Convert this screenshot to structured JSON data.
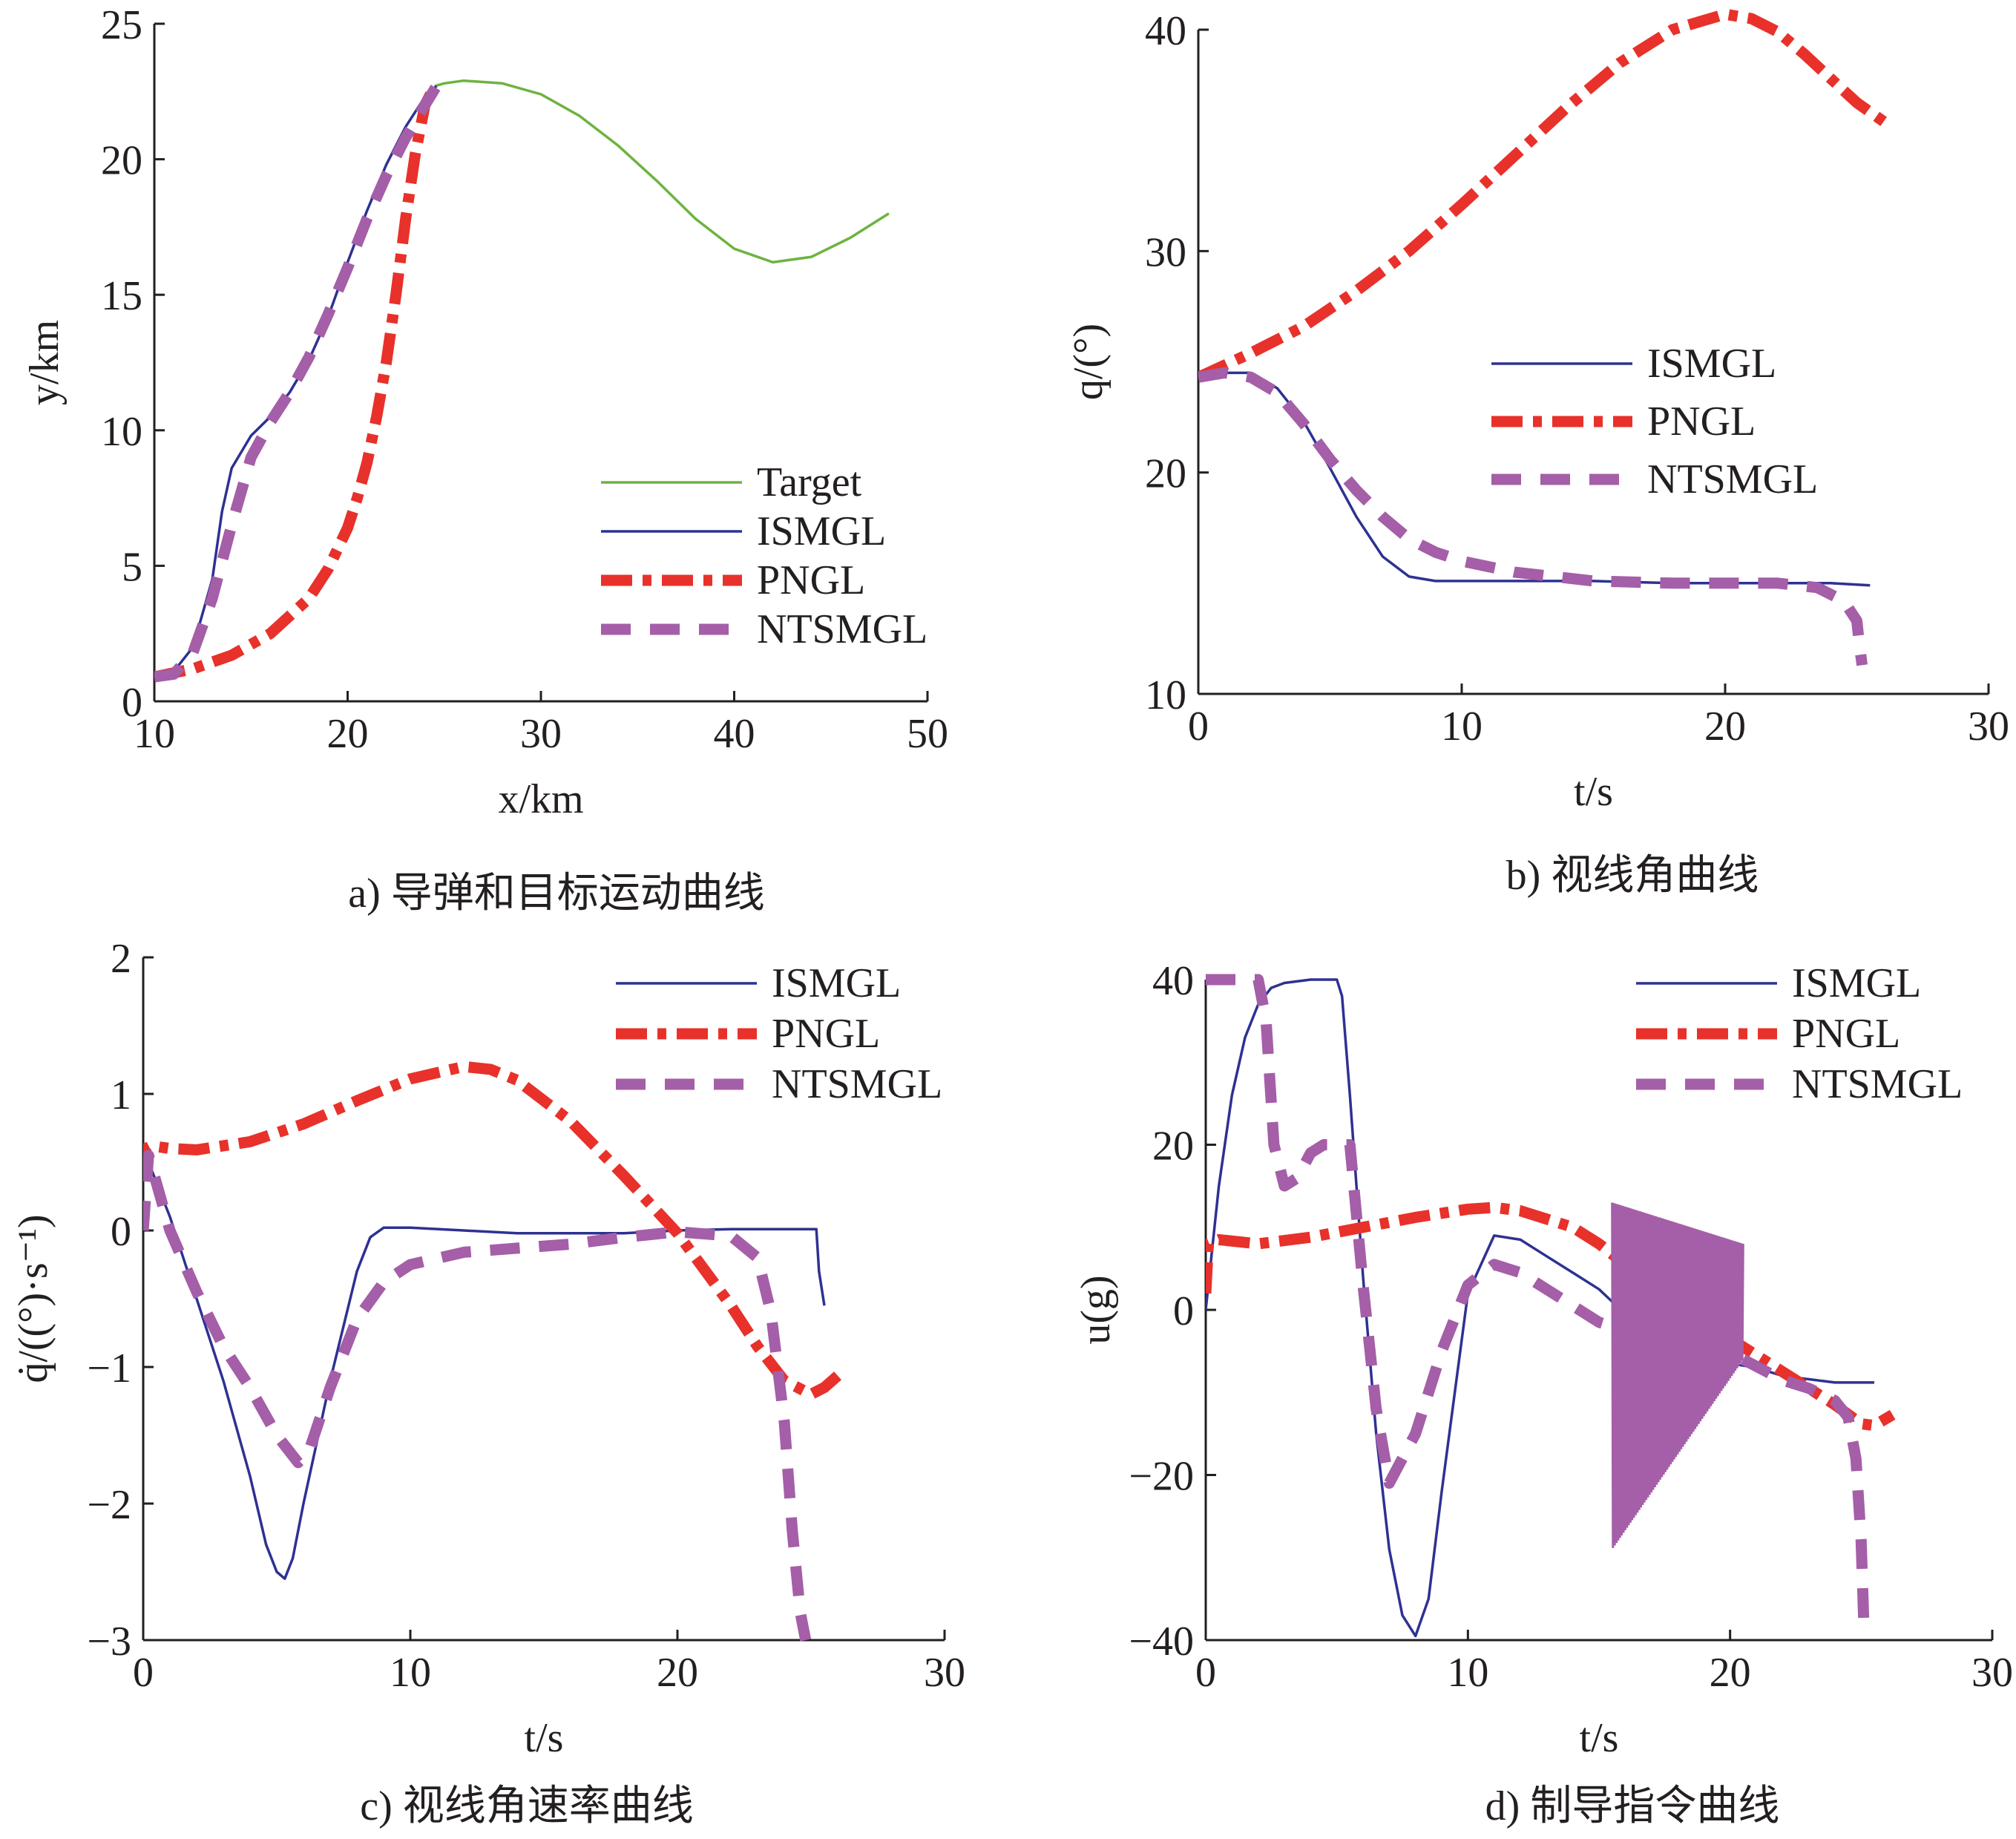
{
  "colors": {
    "target": "#6db33f",
    "ismgl": "#2e3192",
    "pngl": "#e8312a",
    "ntsmgl": "#a55ea8",
    "axis": "#231f20"
  },
  "captions": {
    "a": "a) 导弹和目标运动曲线",
    "b": "b) 视线角曲线",
    "c": "c) 视线角速率曲线",
    "d": "d) 制导指令曲线"
  },
  "chart_data": [
    {
      "id": "a",
      "type": "line",
      "xlabel": "x/km",
      "ylabel": "y/km",
      "xlim": [
        10,
        50
      ],
      "ylim": [
        0,
        25
      ],
      "xticks": [
        10,
        20,
        30,
        40,
        50
      ],
      "yticks": [
        0,
        5,
        10,
        15,
        20,
        25
      ],
      "legend_position": "center-right",
      "series": [
        {
          "name": "Target",
          "style": "solid-thin",
          "color": "target",
          "x": [
            24.5,
            25,
            26,
            28,
            30,
            32,
            34,
            36,
            38,
            40,
            42,
            44,
            46,
            48
          ],
          "y": [
            22.7,
            22.8,
            22.9,
            22.8,
            22.4,
            21.6,
            20.5,
            19.2,
            17.8,
            16.7,
            16.2,
            16.4,
            17.1,
            18.0
          ]
        },
        {
          "name": "ISMGL",
          "style": "solid-thin",
          "color": "ismgl",
          "x": [
            10,
            11,
            12,
            13,
            13.5,
            14,
            15,
            16,
            17,
            18,
            19,
            20,
            21,
            22,
            23,
            24,
            24.6
          ],
          "y": [
            0.9,
            1.1,
            2.0,
            4.5,
            7.0,
            8.6,
            9.8,
            10.5,
            11.4,
            12.6,
            14.2,
            16.2,
            18.1,
            19.8,
            21.2,
            22.3,
            22.7
          ]
        },
        {
          "name": "PNGL",
          "style": "dashdot-thick",
          "color": "pngl",
          "x": [
            10,
            12,
            14,
            16,
            18,
            19,
            20,
            20.5,
            21,
            21.5,
            22,
            22.5,
            23,
            23.5,
            24,
            24.5
          ],
          "y": [
            0.9,
            1.2,
            1.7,
            2.5,
            3.8,
            4.9,
            6.4,
            7.5,
            8.8,
            10.5,
            12.5,
            15.0,
            17.8,
            20.2,
            22.0,
            22.7
          ]
        },
        {
          "name": "NTSMGL",
          "style": "dash-thick",
          "color": "ntsmgl",
          "x": [
            10,
            11,
            12,
            13,
            14,
            15,
            16,
            17,
            18,
            19,
            20,
            21,
            22,
            23,
            24,
            24.6
          ],
          "y": [
            0.9,
            1.0,
            1.8,
            3.8,
            6.5,
            9.0,
            10.3,
            11.4,
            12.7,
            14.3,
            16.0,
            17.8,
            19.4,
            20.8,
            22.0,
            22.7
          ]
        }
      ]
    },
    {
      "id": "b",
      "type": "line",
      "xlabel": "t/s",
      "ylabel": "q/(°)",
      "xlim": [
        0,
        30
      ],
      "ylim": [
        10,
        40
      ],
      "xticks": [
        0,
        10,
        20,
        30
      ],
      "yticks": [
        10,
        20,
        30,
        40
      ],
      "legend_position": "center-right",
      "series": [
        {
          "name": "ISMGL",
          "style": "solid-thin",
          "color": "ismgl",
          "x": [
            0,
            1,
            2,
            3,
            4,
            5,
            6,
            7,
            8,
            9,
            10,
            12,
            15,
            18,
            20,
            22,
            24,
            25.5
          ],
          "y": [
            24.3,
            24.5,
            24.5,
            23.8,
            22.3,
            20.2,
            18.0,
            16.2,
            15.3,
            15.1,
            15.1,
            15.1,
            15.1,
            15.0,
            15.0,
            15.0,
            15.0,
            14.9
          ]
        },
        {
          "name": "PNGL",
          "style": "dashdot-thick",
          "color": "pngl",
          "x": [
            0,
            2,
            4,
            6,
            8,
            10,
            12,
            14,
            16,
            18,
            20,
            21,
            22,
            23,
            24,
            25,
            26.2
          ],
          "y": [
            24.3,
            25.4,
            26.6,
            28.2,
            30.0,
            32.1,
            34.3,
            36.5,
            38.5,
            40.0,
            40.7,
            40.5,
            39.9,
            38.9,
            37.8,
            36.7,
            35.7
          ]
        },
        {
          "name": "NTSMGL",
          "style": "dash-thick",
          "color": "ntsmgl",
          "x": [
            0,
            1,
            2,
            3,
            4,
            5,
            6,
            7,
            8,
            9,
            10,
            12,
            15,
            18,
            20,
            22,
            23.5,
            24.5,
            25,
            25.1,
            25.2
          ],
          "y": [
            24.3,
            24.5,
            24.3,
            23.6,
            22.2,
            20.6,
            19.2,
            18.0,
            17.0,
            16.4,
            16.0,
            15.5,
            15.1,
            15.0,
            15.0,
            15.0,
            14.8,
            14.2,
            13.3,
            12.2,
            11.3
          ]
        }
      ]
    },
    {
      "id": "c",
      "type": "line",
      "xlabel": "t/s",
      "ylabel": "q̇/((°)·s⁻¹)",
      "xlim": [
        0,
        30
      ],
      "ylim": [
        -3,
        2
      ],
      "xticks": [
        0,
        10,
        20,
        30
      ],
      "yticks": [
        -3,
        -2,
        -1,
        0,
        1,
        2
      ],
      "legend_position": "top-right",
      "series": [
        {
          "name": "ISMGL",
          "style": "solid-thin",
          "color": "ismgl",
          "x": [
            0,
            1,
            2,
            3,
            4,
            4.6,
            5,
            5.3,
            5.6,
            6,
            7,
            8,
            8.5,
            9,
            10,
            12,
            14,
            16,
            18,
            20,
            22,
            24,
            25.2,
            25.3,
            25.5
          ],
          "y": [
            0.6,
            0.1,
            -0.5,
            -1.1,
            -1.8,
            -2.3,
            -2.5,
            -2.55,
            -2.4,
            -2.0,
            -1.1,
            -0.3,
            -0.05,
            0.02,
            0.02,
            0.0,
            -0.02,
            -0.02,
            -0.02,
            0.0,
            0.01,
            0.01,
            0.01,
            -0.3,
            -0.55
          ]
        },
        {
          "name": "PNGL",
          "style": "dashdot-thick",
          "color": "pngl",
          "x": [
            0,
            0.1,
            0.3,
            1,
            2,
            4,
            6,
            8,
            10,
            12,
            13,
            14,
            16,
            18,
            20,
            22,
            23,
            24,
            25,
            25.5,
            26.2
          ],
          "y": [
            0.4,
            0.6,
            0.62,
            0.6,
            0.59,
            0.65,
            0.78,
            0.95,
            1.11,
            1.2,
            1.18,
            1.1,
            0.8,
            0.4,
            -0.02,
            -0.55,
            -0.85,
            -1.1,
            -1.2,
            -1.15,
            -1.03
          ]
        },
        {
          "name": "NTSMGL",
          "style": "dash-thick",
          "color": "ntsmgl",
          "x": [
            0,
            0.2,
            1,
            2,
            3,
            4,
            5,
            5.8,
            6.2,
            7,
            8,
            9,
            10,
            12,
            14,
            16,
            18,
            20,
            22,
            23,
            23.5,
            24,
            24.3,
            24.6,
            24.8
          ],
          "y": [
            0.0,
            0.55,
            0.0,
            -0.45,
            -0.85,
            -1.15,
            -1.5,
            -1.7,
            -1.62,
            -1.15,
            -0.65,
            -0.38,
            -0.25,
            -0.16,
            -0.13,
            -0.1,
            -0.05,
            -0.01,
            -0.04,
            -0.2,
            -0.6,
            -1.4,
            -2.2,
            -2.8,
            -3.0
          ]
        }
      ]
    },
    {
      "id": "d",
      "type": "line",
      "xlabel": "t/s",
      "ylabel": "u(g)",
      "xlim": [
        0,
        30
      ],
      "ylim": [
        -40,
        40
      ],
      "xticks": [
        0,
        10,
        20,
        30
      ],
      "yticks": [
        -40,
        -20,
        0,
        20,
        40
      ],
      "legend_position": "top-right",
      "series": [
        {
          "name": "ISMGL",
          "style": "solid-thin",
          "color": "ismgl",
          "x": [
            0,
            0.5,
            1,
            1.5,
            2,
            2.5,
            3,
            4,
            5,
            5.2,
            5.5,
            6,
            6.5,
            7,
            7.5,
            8,
            8.5,
            9,
            10,
            11,
            12,
            13,
            14,
            15,
            15.5,
            16,
            17,
            18,
            19,
            20,
            21,
            22,
            24,
            25.5
          ],
          "y": [
            0,
            15,
            26,
            33,
            37,
            39,
            39.6,
            40,
            40,
            38,
            26,
            4,
            -15,
            -29,
            -37,
            -39.5,
            -35,
            -22,
            2,
            9,
            8.5,
            6.5,
            4.5,
            2.5,
            1,
            0,
            -1,
            -3,
            -5,
            -6.5,
            -7,
            -8,
            -8.8,
            -8.8
          ]
        },
        {
          "name": "PNGL",
          "style": "dashdot-thick",
          "color": "pngl",
          "x": [
            0,
            0.1,
            0.5,
            2,
            4,
            6,
            8,
            10,
            11,
            12,
            14,
            15,
            16,
            18,
            20,
            22,
            24,
            25,
            25.5,
            26.2
          ],
          "y": [
            2,
            8,
            8.5,
            8,
            8.8,
            10,
            11.2,
            12.2,
            12.4,
            12,
            10,
            8,
            5.5,
            1.5,
            -3.5,
            -7.5,
            -11.5,
            -13.8,
            -14,
            -12.7
          ]
        },
        {
          "name": "NTSMGL",
          "style": "dash-thick",
          "color": "ntsmgl",
          "x": [
            0,
            0.1,
            1,
            2,
            2.3,
            2.6,
            3,
            3.5,
            4,
            4.5,
            5,
            5.5,
            6,
            6.5,
            7,
            8,
            9,
            10,
            11,
            12,
            13,
            14,
            15,
            15.5
          ],
          "y": [
            40,
            40,
            40,
            40,
            35,
            20,
            15,
            16,
            19,
            20,
            20,
            20,
            3,
            -12,
            -21,
            -15,
            -5,
            3,
            5.5,
            4.5,
            2.5,
            0.5,
            -1.5,
            -2
          ],
          "tail_x": [
            20.5,
            22,
            23,
            24,
            24.5,
            24.8,
            25,
            25.1
          ],
          "tail_y": [
            -6,
            -8.5,
            -9.5,
            -11,
            -13,
            -18,
            -28,
            -38
          ],
          "oscillation": {
            "t_start": 15.5,
            "t_end": 20.5,
            "upper_start": 13,
            "upper_end": 8,
            "lower_start": -29,
            "lower_end": -6
          }
        }
      ]
    }
  ]
}
